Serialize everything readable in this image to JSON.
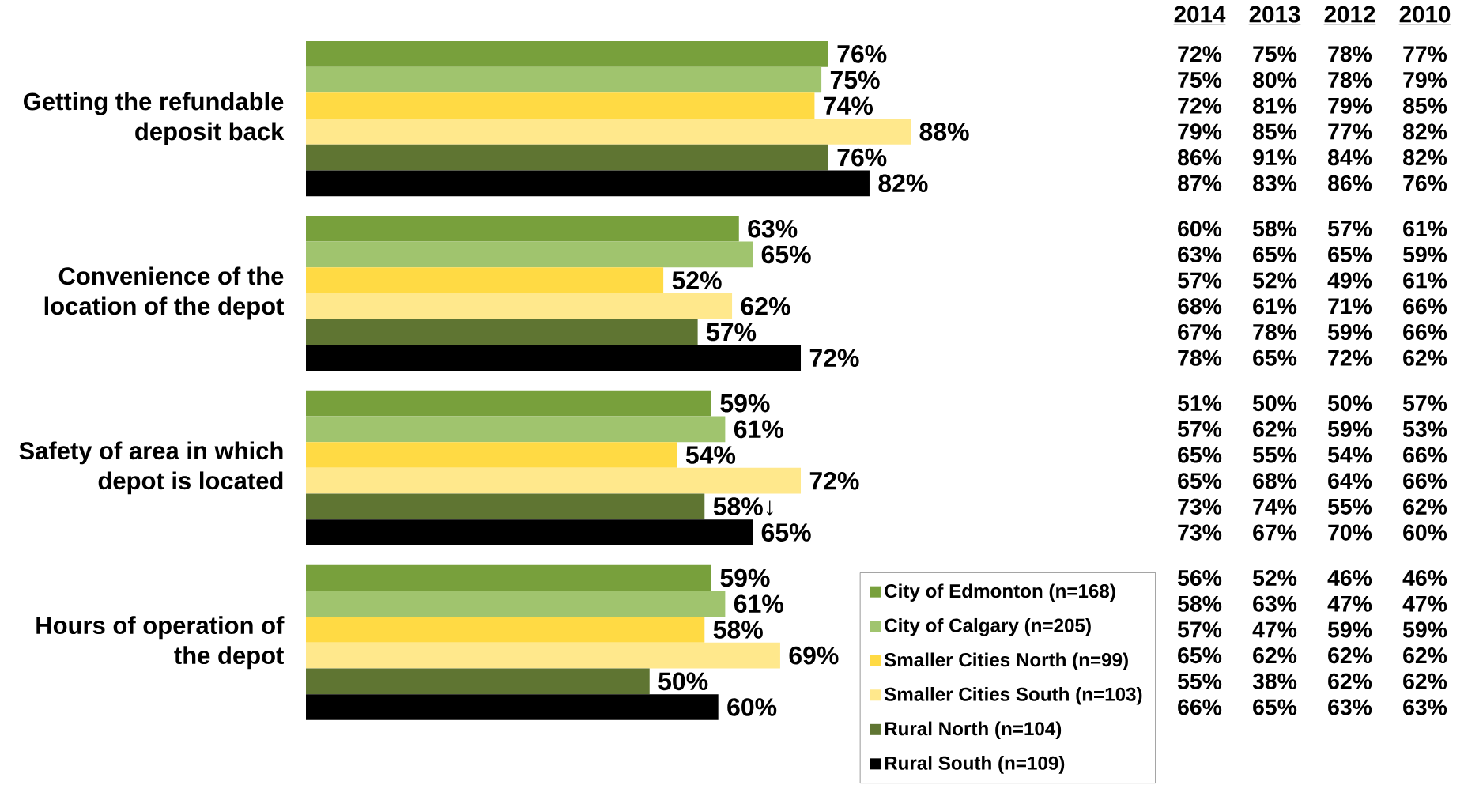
{
  "chart_data": [
    {
      "type": "bar",
      "orientation": "horizontal",
      "categories": [
        "Getting the refundable deposit back",
        "Convenience of the location of the depot",
        "Safety of area in which depot is located",
        "Hours of operation of the depot"
      ],
      "series": [
        {
          "name": "City of Edmonton (n=168)",
          "color": "#78A03C",
          "values": [
            76,
            63,
            59,
            59
          ],
          "value_labels": [
            "76%",
            "63%",
            "59%",
            "59%"
          ]
        },
        {
          "name": "City of Calgary (n=205)",
          "color": "#A0C46E",
          "values": [
            75,
            65,
            61,
            61
          ],
          "value_labels": [
            "75%",
            "65%",
            "61%",
            "61%"
          ]
        },
        {
          "name": "Smaller Cities North (n=99)",
          "color": "#FFDA44",
          "values": [
            74,
            52,
            54,
            58
          ],
          "value_labels": [
            "74%",
            "52%",
            "54%",
            "58%"
          ]
        },
        {
          "name": "Smaller Cities South (n=103)",
          "color": "#FFE88C",
          "values": [
            88,
            62,
            72,
            69
          ],
          "value_labels": [
            "88%",
            "62%",
            "72%",
            "69%"
          ]
        },
        {
          "name": "Rural North (n=104)",
          "color": "#5F7532",
          "values": [
            76,
            57,
            58,
            50
          ],
          "value_labels": [
            "76%",
            "57%",
            "58%↓",
            "50%"
          ]
        },
        {
          "name": "Rural South (n=109)",
          "color": "#000000",
          "values": [
            82,
            72,
            65,
            60
          ],
          "value_labels": [
            "82%",
            "72%",
            "65%",
            "60%"
          ]
        }
      ],
      "legend": "bottom right"
    },
    {
      "type": "other",
      "annotations": [
        "2014",
        "2013",
        "2012",
        "2010",
        "72%",
        "75%",
        "78%",
        "77%",
        "75%",
        "80%",
        "78%",
        "79%",
        "72%",
        "81%",
        "79%",
        "85%",
        "79%",
        "85%",
        "77%",
        "82%",
        "86%",
        "91%",
        "84%",
        "82%",
        "87%",
        "83%",
        "86%",
        "76%",
        "60%",
        "58%",
        "57%",
        "61%",
        "63%",
        "65%",
        "65%",
        "59%",
        "57%",
        "52%",
        "49%",
        "61%",
        "68%",
        "61%",
        "71%",
        "66%",
        "67%",
        "78%",
        "59%",
        "66%",
        "78%",
        "65%",
        "72%",
        "62%",
        "51%",
        "50%",
        "50%",
        "57%",
        "57%",
        "62%",
        "59%",
        "53%",
        "65%",
        "55%",
        "54%",
        "66%",
        "65%",
        "68%",
        "64%",
        "66%",
        "73%",
        "74%",
        "55%",
        "62%",
        "73%",
        "67%",
        "70%",
        "60%",
        "56%",
        "52%",
        "46%",
        "46%",
        "58%",
        "63%",
        "47%",
        "47%",
        "57%",
        "47%",
        "59%",
        "59%",
        "65%",
        "62%",
        "62%",
        "62%",
        "55%",
        "38%",
        "62%",
        "62%",
        "66%",
        "65%",
        "63%",
        "63%"
      ]
    }
  ]
}
